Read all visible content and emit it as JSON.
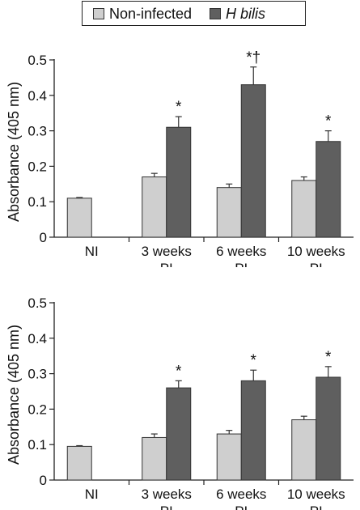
{
  "legend": {
    "items": [
      {
        "label": "Non-infected",
        "color": "#cfcfcf"
      },
      {
        "label": "H bilis",
        "color": "#5f5f5f"
      }
    ]
  },
  "chart_data": [
    {
      "type": "bar",
      "ylabel": "Absorbance (405 nm)",
      "ylim": [
        0,
        0.5
      ],
      "yticks": [
        "0",
        "0.1",
        "0.2",
        "0.3",
        "0.4",
        "0.5"
      ],
      "categories": [
        [
          "NI"
        ],
        [
          "3 weeks",
          "PI"
        ],
        [
          "6 weeks",
          "PI"
        ],
        [
          "10 weeks",
          "PI"
        ]
      ],
      "series": [
        {
          "name": "Non-infected",
          "values": [
            0.11,
            0.17,
            0.14,
            0.16
          ],
          "errors": [
            0.002,
            0.01,
            0.01,
            0.01
          ]
        },
        {
          "name": "H bilis",
          "values": [
            null,
            0.31,
            0.43,
            0.27
          ],
          "errors": [
            null,
            0.03,
            0.05,
            0.03
          ]
        }
      ],
      "annotations": [
        "",
        "*",
        "*†",
        "*"
      ]
    },
    {
      "type": "bar",
      "ylabel": "Absorbance (405 nm)",
      "ylim": [
        0,
        0.5
      ],
      "yticks": [
        "0",
        "0.1",
        "0.2",
        "0.3",
        "0.4",
        "0.5"
      ],
      "categories": [
        [
          "NI"
        ],
        [
          "3 weeks",
          "PI"
        ],
        [
          "6 weeks",
          "PI"
        ],
        [
          "10 weeks",
          "PI"
        ]
      ],
      "series": [
        {
          "name": "Non-infected",
          "values": [
            0.095,
            0.12,
            0.13,
            0.17
          ],
          "errors": [
            0.002,
            0.01,
            0.01,
            0.01
          ]
        },
        {
          "name": "H bilis",
          "values": [
            null,
            0.26,
            0.28,
            0.29
          ],
          "errors": [
            null,
            0.02,
            0.03,
            0.03
          ]
        }
      ],
      "annotations": [
        "",
        "*",
        "*",
        "*"
      ]
    }
  ]
}
